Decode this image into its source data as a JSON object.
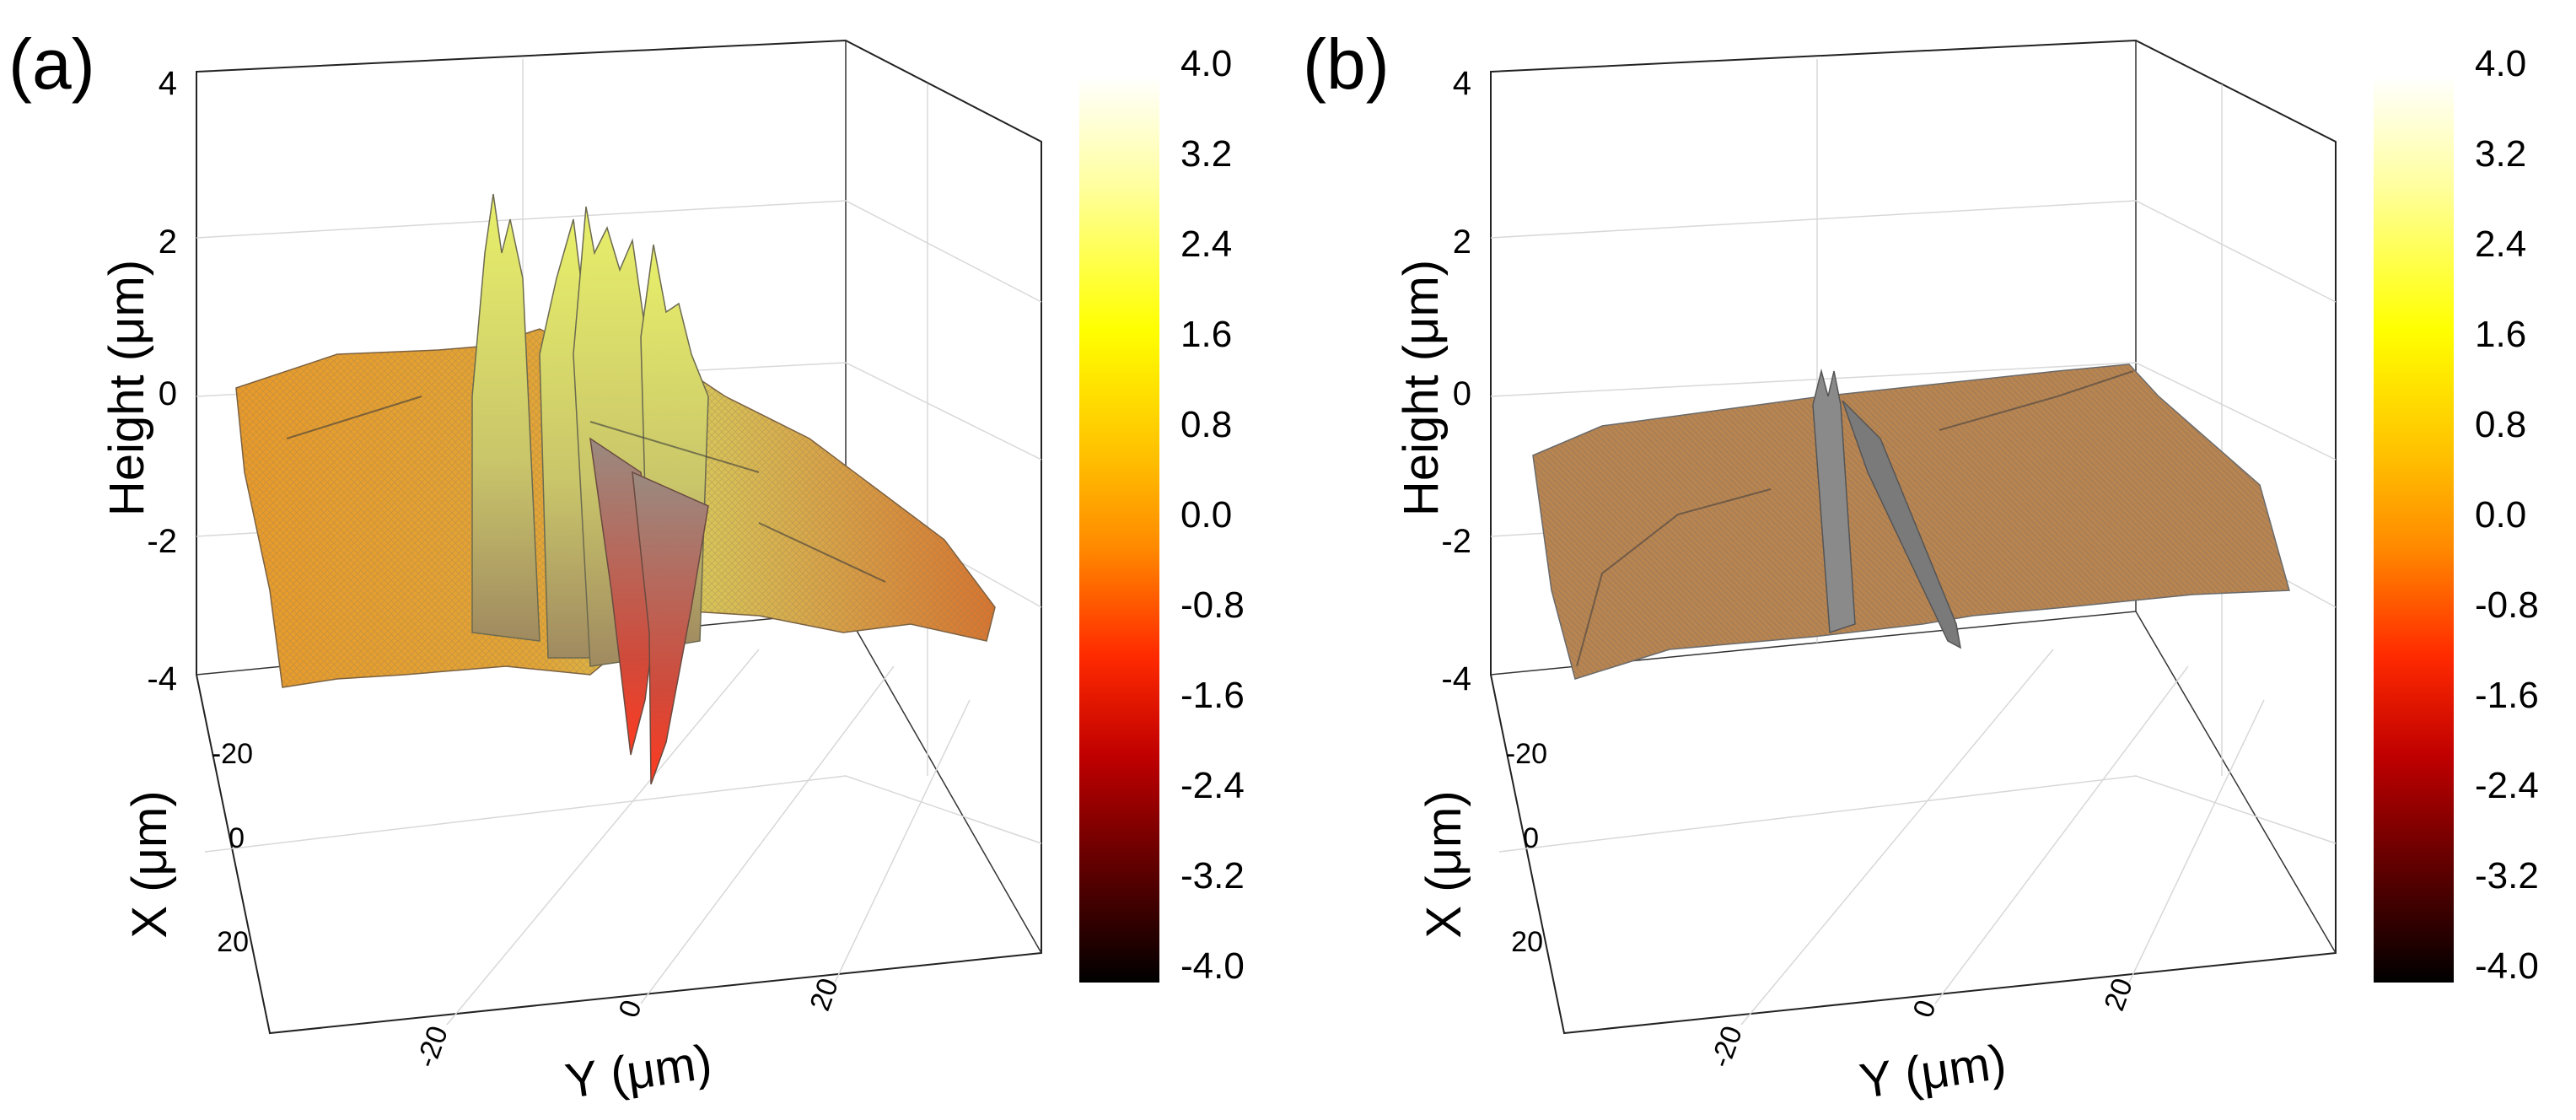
{
  "chart_data": [
    {
      "panel_label": "(a)",
      "type": "surface3d",
      "zlabel": "Height (μm)",
      "xlabel": "X (μm)",
      "ylabel": "Y (μm)",
      "z_ticks": [
        "4",
        "2",
        "0",
        "-2",
        "-4"
      ],
      "x_ticks": [
        "-20",
        "0",
        "20"
      ],
      "y_ticks": [
        "-20",
        "0",
        "20"
      ],
      "zlim": [
        -4,
        4
      ],
      "xlim": [
        -30,
        30
      ],
      "ylim": [
        -35,
        35
      ],
      "colorbar": {
        "ticks": [
          "4.0",
          "3.2",
          "2.4",
          "1.6",
          "0.8",
          "0.0",
          "-0.8",
          "-1.6",
          "-2.4",
          "-3.2",
          "-4.0"
        ],
        "range": [
          -4.0,
          4.0
        ],
        "colors": [
          "#000000",
          "#5a0000",
          "#c00000",
          "#ff2a00",
          "#ff8a00",
          "#ffc000",
          "#ffff00",
          "#ffffa0",
          "#ffffff"
        ]
      },
      "surface_description_values": {
        "baseline_height": -0.4,
        "peak_heights": [
          2.6,
          2.4,
          1.9,
          2.1
        ],
        "trough_heights": [
          -3.4,
          -3.0
        ]
      }
    },
    {
      "panel_label": "(b)",
      "type": "surface3d",
      "zlabel": "Height (μm)",
      "xlabel": "X (μm)",
      "ylabel": "Y (μm)",
      "z_ticks": [
        "4",
        "2",
        "0",
        "-2",
        "-4"
      ],
      "x_ticks": [
        "-20",
        "0",
        "20"
      ],
      "y_ticks": [
        "-20",
        "0",
        "20"
      ],
      "zlim": [
        -4,
        4
      ],
      "xlim": [
        -30,
        30
      ],
      "ylim": [
        -35,
        35
      ],
      "colorbar": {
        "ticks": [
          "4.0",
          "3.2",
          "2.4",
          "1.6",
          "0.8",
          "0.0",
          "-0.8",
          "-1.6",
          "-2.4",
          "-3.2",
          "-4.0"
        ],
        "range": [
          -4.0,
          4.0
        ],
        "colors": [
          "#000000",
          "#5a0000",
          "#c00000",
          "#ff2a00",
          "#ff8a00",
          "#ffc000",
          "#ffff00",
          "#ffffa0",
          "#ffffff"
        ]
      },
      "surface_description_values": {
        "baseline_height": -0.6,
        "peak_heights": [
          0.3,
          0.3
        ],
        "trough_heights": [
          -1.4
        ]
      }
    }
  ]
}
